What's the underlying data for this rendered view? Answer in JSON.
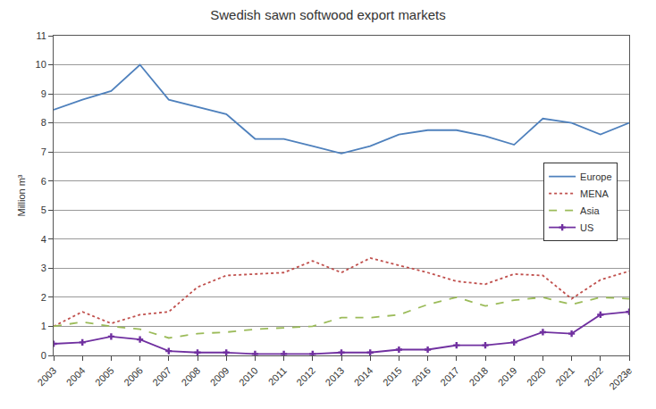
{
  "chart_data": {
    "type": "line",
    "title": "Swedish sawn softwood export markets",
    "y_label": "Million m³",
    "categories": [
      "2003",
      "2004",
      "2005",
      "2006",
      "2007",
      "2008",
      "2009",
      "2010",
      "2011",
      "2012",
      "2013",
      "2014",
      "2015",
      "2016",
      "2017",
      "2018",
      "2019",
      "2020",
      "2021",
      "2022",
      "2023e"
    ],
    "series": [
      {
        "name": "Europe",
        "color": "#4f81bd",
        "line_style": "solid",
        "values": [
          8.45,
          8.8,
          9.1,
          10.0,
          8.8,
          8.55,
          8.3,
          7.45,
          7.45,
          7.2,
          6.95,
          7.2,
          7.6,
          7.75,
          7.75,
          7.55,
          7.25,
          8.15,
          8.0,
          7.6,
          8.0
        ]
      },
      {
        "name": "MENA",
        "color": "#c0504d",
        "line_style": "dot",
        "values": [
          1.0,
          1.5,
          1.1,
          1.4,
          1.5,
          2.35,
          2.75,
          2.8,
          2.85,
          3.25,
          2.85,
          3.35,
          3.1,
          2.85,
          2.55,
          2.45,
          2.8,
          2.75,
          1.95,
          2.6,
          2.9
        ]
      },
      {
        "name": "Asia",
        "color": "#9bbb59",
        "line_style": "dash",
        "values": [
          1.0,
          1.15,
          1.0,
          0.9,
          0.6,
          0.75,
          0.8,
          0.9,
          0.95,
          1.0,
          1.3,
          1.3,
          1.4,
          1.75,
          2.0,
          1.7,
          1.9,
          2.0,
          1.75,
          2.0,
          1.95
        ]
      },
      {
        "name": "US",
        "color": "#7030a0",
        "line_style": "solid",
        "marker": "cross",
        "values": [
          0.4,
          0.45,
          0.65,
          0.55,
          0.15,
          0.1,
          0.1,
          0.05,
          0.05,
          0.05,
          0.1,
          0.1,
          0.2,
          0.2,
          0.35,
          0.35,
          0.45,
          0.8,
          0.75,
          1.4,
          1.5
        ]
      }
    ],
    "ylim": [
      0,
      11
    ],
    "yticks": [
      0,
      1,
      2,
      3,
      4,
      5,
      6,
      7,
      8,
      9,
      10,
      11
    ],
    "grid": true,
    "legend": "right"
  }
}
